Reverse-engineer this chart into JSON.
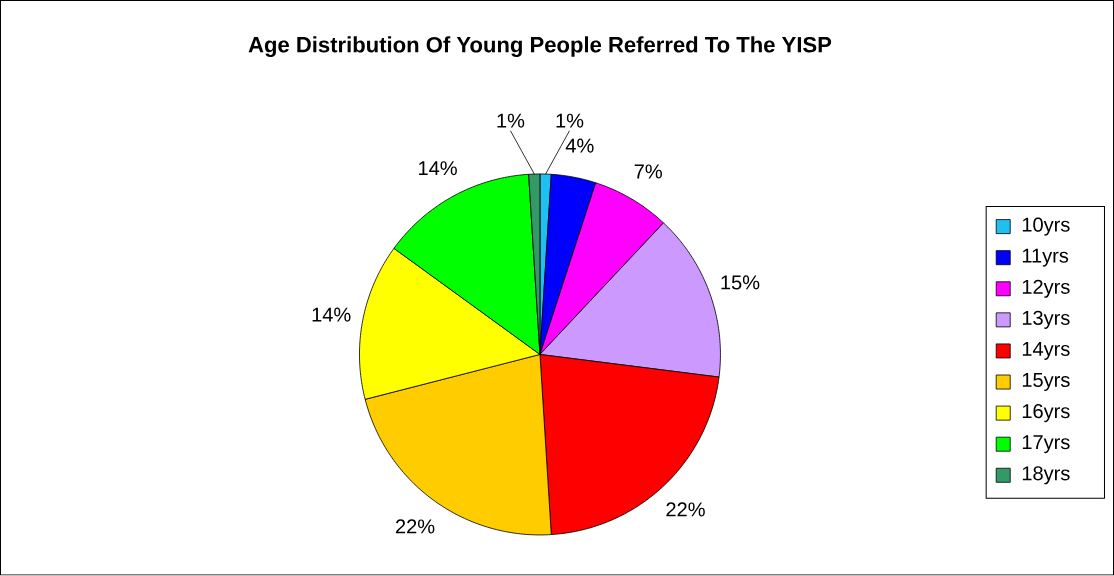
{
  "chart_data": {
    "type": "pie",
    "title": "Age Distribution Of Young People Referred To The YISP",
    "categories": [
      "10yrs",
      "11yrs",
      "12yrs",
      "13yrs",
      "14yrs",
      "15yrs",
      "16yrs",
      "17yrs",
      "18yrs"
    ],
    "values": [
      1,
      4,
      7,
      15,
      22,
      22,
      14,
      14,
      1
    ],
    "colors": [
      "#1fbfef",
      "#0000ff",
      "#ff00ff",
      "#cc99ff",
      "#ff0000",
      "#ffcc00",
      "#ffff00",
      "#00ff00",
      "#339966"
    ],
    "value_labels": [
      "1%",
      "4%",
      "7%",
      "15%",
      "22%",
      "22%",
      "14%",
      "14%",
      "1%"
    ],
    "legend": "right"
  }
}
